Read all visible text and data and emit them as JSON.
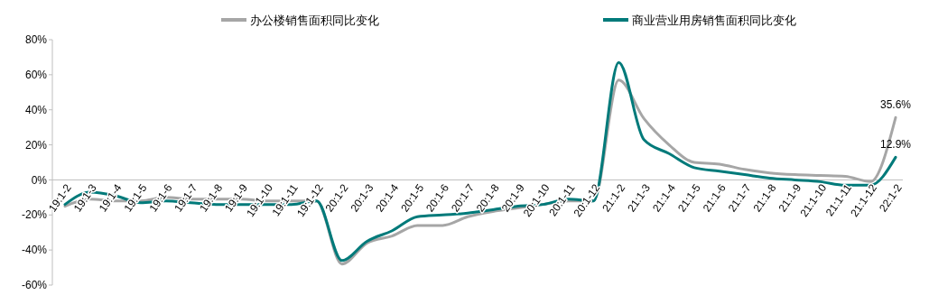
{
  "chart_data": {
    "type": "line",
    "categories": [
      "19:1-2",
      "19:1-3",
      "19:1-4",
      "19:1-5",
      "19:1-6",
      "19:1-7",
      "19:1-8",
      "19:1-9",
      "19:1-10",
      "19:1-11",
      "19:1-12",
      "20:1-2",
      "20:1-3",
      "20:1-4",
      "20:1-5",
      "20:1-6",
      "20:1-7",
      "20:1-8",
      "20:1-9",
      "20:1-10",
      "20:1-11",
      "20:1-12",
      "21:1-2",
      "21:1-3",
      "21:1-4",
      "21:1-5",
      "21:1-6",
      "21:1-7",
      "21:1-8",
      "21:1-9",
      "21:1-10",
      "21:1-11",
      "21:1-12",
      "22:1-2"
    ],
    "series": [
      {
        "name": "办公楼销售面积同比变化",
        "color": "#a6a6a6",
        "values": [
          -15,
          -11,
          -12,
          -12,
          -10,
          -11,
          -11,
          -11,
          -12,
          -12,
          -12,
          -48,
          -36,
          -32,
          -26,
          -26,
          -21,
          -18,
          -16,
          -14,
          -12,
          -12,
          57,
          35,
          20,
          10,
          9,
          6,
          4,
          3,
          2.5,
          2,
          -1,
          35.6
        ]
      },
      {
        "name": "商业营业用房销售面积同比变化",
        "color": "#007a7a",
        "values": [
          -14,
          -7,
          -9,
          -13,
          -12,
          -13,
          -14,
          -14,
          -14,
          -14,
          -12,
          -46,
          -35,
          -29,
          -21,
          -20,
          -19,
          -17,
          -15,
          -14,
          -11,
          -12,
          67,
          23,
          15,
          7,
          5,
          3,
          1,
          0,
          -1,
          -3,
          -3,
          12.9
        ]
      }
    ],
    "ylim": [
      -60,
      80
    ],
    "yticks": [
      {
        "value": -60,
        "label": "-60%"
      },
      {
        "value": -40,
        "label": "-40%"
      },
      {
        "value": -20,
        "label": "-20%"
      },
      {
        "value": 0,
        "label": "0%"
      },
      {
        "value": 20,
        "label": "20%"
      },
      {
        "value": 40,
        "label": "40%"
      },
      {
        "value": 60,
        "label": "60%"
      },
      {
        "value": 80,
        "label": "80%"
      }
    ],
    "annotations": [
      {
        "text": "35.6%",
        "x": "22:1-2",
        "y": 35.6
      },
      {
        "text": "12.9%",
        "x": "22:1-2",
        "y": 12.9
      }
    ],
    "legend": "top",
    "grid": false,
    "marker": "none",
    "line_style": "solid"
  }
}
